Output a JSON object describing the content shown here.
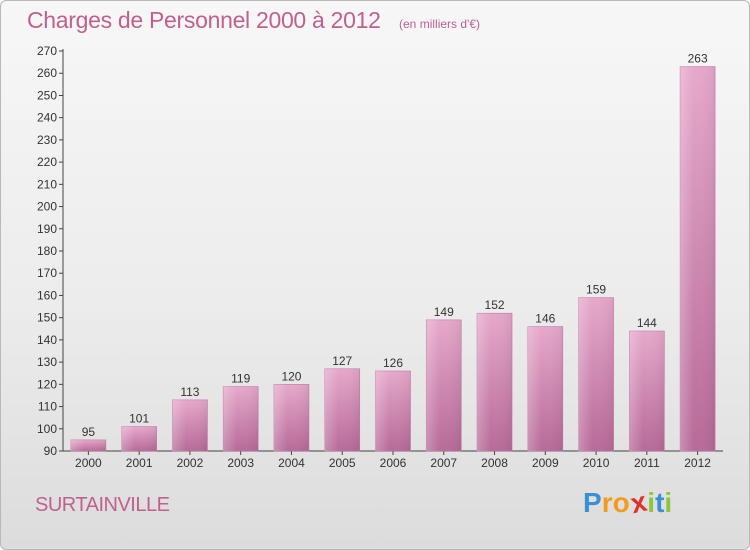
{
  "chart_data": {
    "type": "bar",
    "title": "Charges de Personnel 2000 à 2012",
    "subtitle": "(en milliers d'€)",
    "categories": [
      "2000",
      "2001",
      "2002",
      "2003",
      "2004",
      "2005",
      "2006",
      "2007",
      "2008",
      "2009",
      "2010",
      "2011",
      "2012"
    ],
    "values": [
      95,
      101,
      113,
      119,
      120,
      127,
      126,
      149,
      152,
      146,
      159,
      144,
      263
    ],
    "data_labels": [
      "95",
      "101",
      "113",
      "119",
      "120",
      "127",
      "126",
      "149",
      "152",
      "146",
      "159",
      "144",
      "263"
    ],
    "ylim": [
      90,
      270
    ],
    "yticks": [
      "90",
      "100",
      "110",
      "120",
      "130",
      "140",
      "150",
      "160",
      "170",
      "180",
      "190",
      "200",
      "210",
      "220",
      "230",
      "240",
      "250",
      "260",
      "270"
    ],
    "grid": false,
    "bar_color": "#d98db6"
  },
  "location": "SURTAINVILLE",
  "logo": {
    "text": "Proxiti",
    "letters": [
      "P",
      "r",
      "o",
      "x",
      "i",
      "t",
      "i"
    ],
    "colors": [
      "#3a8fd6",
      "#f29b1c",
      "#f29b1c",
      "#e0322a",
      "#8cc63f",
      "#3a8fd6",
      "#8cc63f"
    ]
  }
}
